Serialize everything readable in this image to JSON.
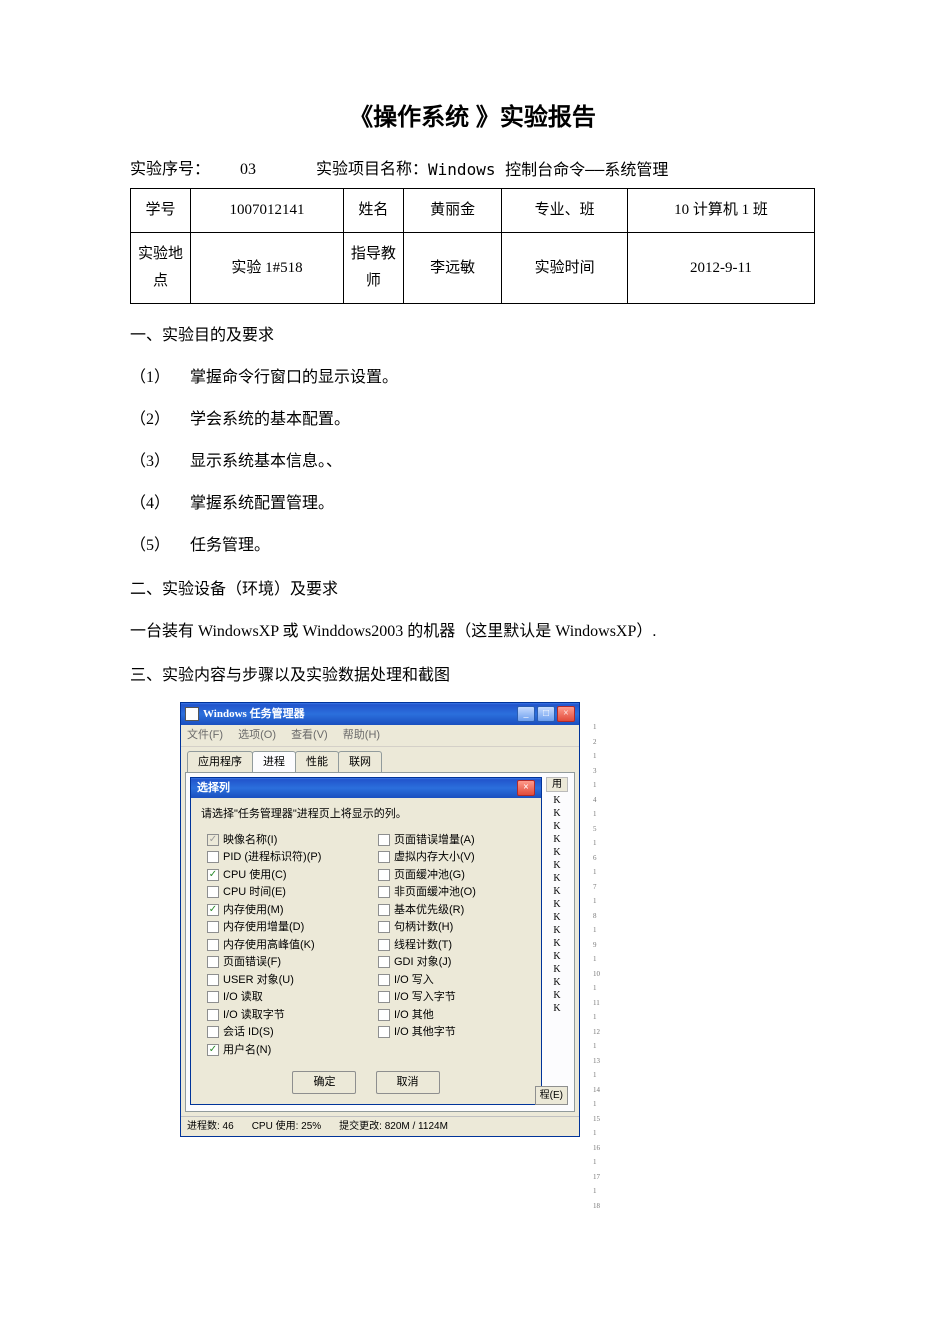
{
  "doc": {
    "title": "《操作系统 》实验报告",
    "serial_label": "实验序号：",
    "serial_value": "03",
    "project_label": "实验项目名称：",
    "project_value": "Windows 控制台命令——系统管理"
  },
  "table": {
    "r1": {
      "c1": "学号",
      "c2": "1007012141",
      "c3": "姓名",
      "c4": "黄丽金",
      "c5": "专业、班",
      "c6": "10 计算机 1 班"
    },
    "r2": {
      "c1": "实验地点",
      "c2": "实验 1#518",
      "c3": "指导教师",
      "c4": "李远敏",
      "c5": "实验时间",
      "c6": "2012-9-11"
    }
  },
  "sections": {
    "s1": "一、实验目的及要求",
    "i1": "掌握命令行窗口的显示设置。",
    "i2": "学会系统的基本配置。",
    "i3": "显示系统基本信息。、",
    "i4": "掌握系统配置管理。",
    "i5": "任务管理。",
    "n1": "（1）",
    "n2": "（2）",
    "n3": "（3）",
    "n4": "（4）",
    "n5": "（5）",
    "s2": "二、实验设备（环境）及要求",
    "p2": "一台装有 WindowsXP 或 Winddows2003 的机器（这里默认是 WindowsXP）.",
    "s3": "三、实验内容与步骤以及实验数据处理和截图"
  },
  "tm": {
    "window_title": "Windows 任务管理器",
    "menu": {
      "file": "文件(F)",
      "options": "选项(O)",
      "view": "查看(V)",
      "help": "帮助(H)"
    },
    "tabs": {
      "t1": "应用程序",
      "t2": "进程",
      "t3": "性能",
      "t4": "联网"
    },
    "header_col": "用",
    "endproc": "程(E)",
    "status": {
      "procs": "进程数: 46",
      "cpu": "CPU 使用: 25%",
      "commit": "提交更改: 820M / 1124M"
    },
    "win_min": "_",
    "win_max": "□",
    "win_close": "×"
  },
  "dlg": {
    "title": "选择列",
    "close": "×",
    "instruction": "请选择\"任务管理器\"进程页上将显示的列。",
    "ok": "确定",
    "cancel": "取消",
    "left": [
      {
        "label": "映像名称(I)",
        "checked": true,
        "disabled": true
      },
      {
        "label": "PID (进程标识符)(P)",
        "checked": false
      },
      {
        "label": "CPU 使用(C)",
        "checked": true
      },
      {
        "label": "CPU 时间(E)",
        "checked": false
      },
      {
        "label": "内存使用(M)",
        "checked": true
      },
      {
        "label": "内存使用增量(D)",
        "checked": false
      },
      {
        "label": "内存使用高峰值(K)",
        "checked": false
      },
      {
        "label": "页面错误(F)",
        "checked": false
      },
      {
        "label": "USER 对象(U)",
        "checked": false
      },
      {
        "label": "I/O 读取",
        "checked": false
      },
      {
        "label": "I/O 读取字节",
        "checked": false
      },
      {
        "label": "会话 ID(S)",
        "checked": false
      },
      {
        "label": "用户名(N)",
        "checked": true
      }
    ],
    "right": [
      {
        "label": "页面错误增量(A)",
        "checked": false
      },
      {
        "label": "虚拟内存大小(V)",
        "checked": false
      },
      {
        "label": "页面缓冲池(G)",
        "checked": false
      },
      {
        "label": "非页面缓冲池(O)",
        "checked": false
      },
      {
        "label": "基本优先级(R)",
        "checked": false
      },
      {
        "label": "句柄计数(H)",
        "checked": false
      },
      {
        "label": "线程计数(T)",
        "checked": false
      },
      {
        "label": "GDI 对象(J)",
        "checked": false
      },
      {
        "label": "I/O 写入",
        "checked": false
      },
      {
        "label": "I/O 写入字节",
        "checked": false
      },
      {
        "label": "I/O 其他",
        "checked": false
      },
      {
        "label": "I/O 其他字节",
        "checked": false
      }
    ]
  },
  "ruler_marks": [
    "1",
    "2",
    "1",
    "3",
    "1",
    "4",
    "1",
    "5",
    "1",
    "6",
    "1",
    "7",
    "1",
    "8",
    "1",
    "9",
    "1",
    "10",
    "1",
    "11",
    "1",
    "12",
    "1",
    "13",
    "1",
    "14",
    "1",
    "15",
    "1",
    "16",
    "1",
    "17",
    "1",
    "18"
  ],
  "colors": {
    "titlebar_start": "#3b78e7",
    "titlebar_end": "#1a4fbf",
    "win_bg": "#ece9d8",
    "border": "#003399",
    "close_red": "#e14b3b"
  }
}
